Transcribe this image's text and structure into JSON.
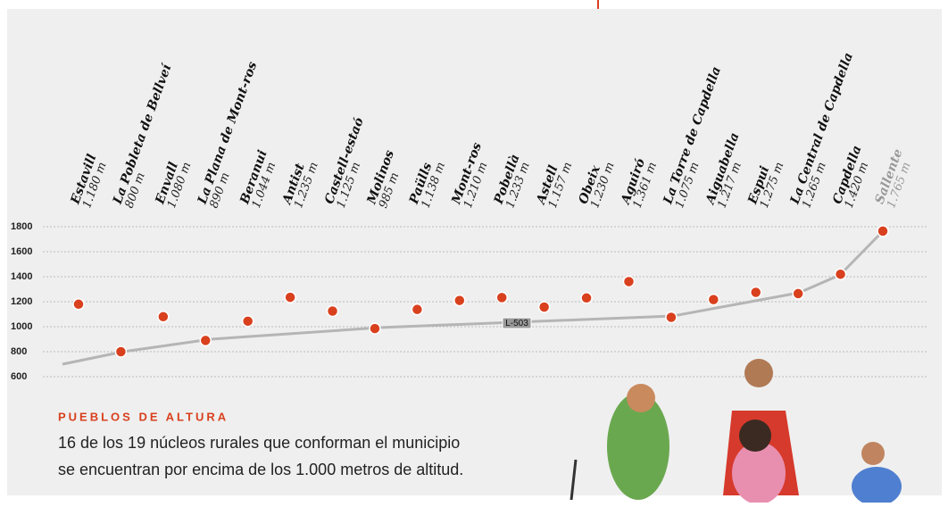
{
  "chart_data": {
    "type": "scatter",
    "categories": [
      "Estavill",
      "La Pobleta de Bellveí",
      "Envall",
      "La Plana de Mont-ros",
      "Beranui",
      "Antist",
      "Castell-estaó",
      "Molinos",
      "Paülls",
      "Mont-ros",
      "Pobellà",
      "Astell",
      "Obeix",
      "Aguiró",
      "La Torre de Capdella",
      "Aiguabella",
      "Espui",
      "La Central de Capdella",
      "Capdella",
      "Sallente"
    ],
    "values": [
      1180,
      800,
      1080,
      890,
      1044,
      1235,
      1125,
      985,
      1138,
      1210,
      1233,
      1157,
      1230,
      1361,
      1075,
      1217,
      1275,
      1265,
      1420,
      1765
    ],
    "value_labels": [
      "1.180 m",
      "800 m",
      "1.080 m",
      "890 m",
      "1.044 m",
      "1.235 m",
      "1.125 m",
      "985 m",
      "1.138 m",
      "1.210 m",
      "1.233 m",
      "1.157 m",
      "1.230 m",
      "1.361 m",
      "1.075 m",
      "1.217 m",
      "1.275 m",
      "1.265 m",
      "1.420 m",
      "1.765 m"
    ],
    "color": "#d9401e",
    "ylim": [
      600,
      1800
    ],
    "yticks": [
      600,
      800,
      1000,
      1200,
      1400,
      1600,
      1800
    ],
    "grid": true,
    "road_label": "L-503",
    "heading": "PUEBLOS DE ALTURA",
    "description": [
      "16 de los 19 núcleos rurales que conforman el municipio",
      "se encuentran por encima de los 1.000 metros de altitud."
    ]
  }
}
